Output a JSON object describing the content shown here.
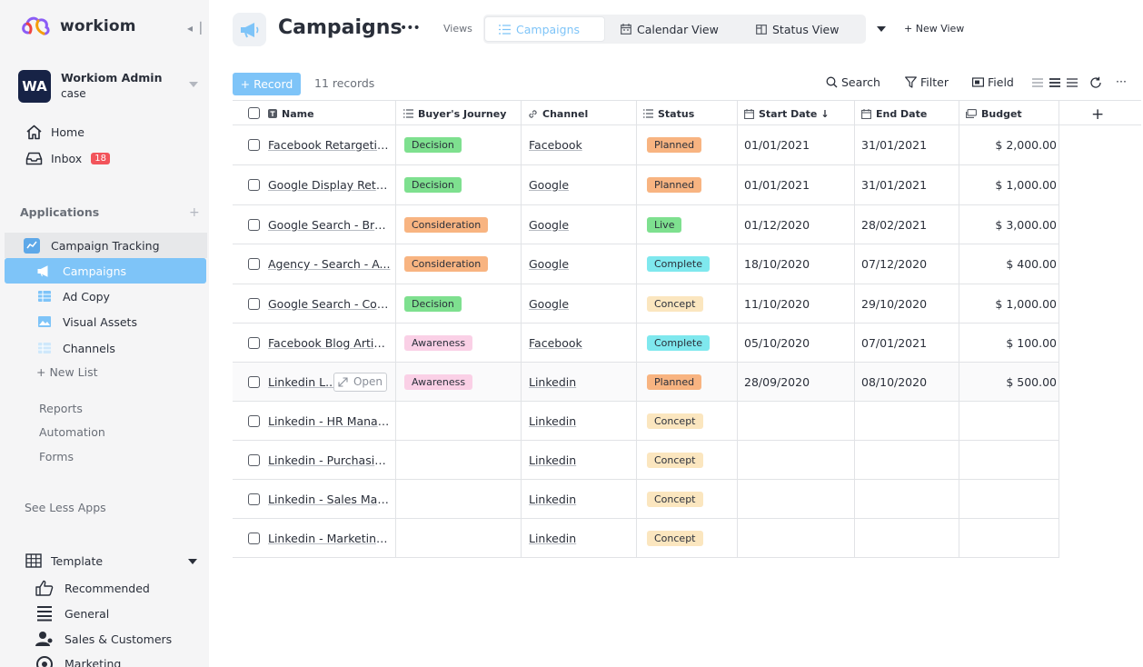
{
  "app": {
    "name": "workiom"
  },
  "user": {
    "initials": "WA",
    "name": "Workiom Admin",
    "subtitle": "case"
  },
  "nav": {
    "home": "Home",
    "inbox": "Inbox",
    "inbox_count": "18"
  },
  "applications": {
    "title": "Applications",
    "app_name": "Campaign Tracking",
    "lists": [
      {
        "label": "Campaigns",
        "active": true
      },
      {
        "label": "Ad Copy"
      },
      {
        "label": "Visual Assets"
      },
      {
        "label": "Channels"
      }
    ],
    "new_list": "+ New List",
    "links": [
      "Reports",
      "Automation",
      "Forms"
    ],
    "see_less": "See Less Apps"
  },
  "template": {
    "title": "Template",
    "categories": [
      "Recommended",
      "General",
      "Sales & Customers",
      "Marketing"
    ]
  },
  "header": {
    "title": "Campaigns",
    "more": "•••",
    "views_label": "Views",
    "tabs": [
      {
        "label": "Campaigns",
        "icon": "list-icon",
        "active": true
      },
      {
        "label": "Calendar View",
        "icon": "calendar-icon"
      },
      {
        "label": "Status View",
        "icon": "board-icon"
      }
    ],
    "new_view": "+  New View"
  },
  "toolbar": {
    "record_button": "+ Record",
    "record_count": "11 records",
    "search": "Search",
    "filter": "Filter",
    "field": "Field",
    "more": "···"
  },
  "table": {
    "columns": [
      "Name",
      "Buyer's Journey",
      "Channel",
      "Status",
      "Start Date",
      "End Date",
      "Budget"
    ],
    "sort_indicator": "↓",
    "open_label": "Open",
    "rows": [
      {
        "name": "Facebook Retargeting",
        "journey": "Decision",
        "channel": "Facebook",
        "status": "Planned",
        "start": "01/01/2021",
        "end": "31/01/2021",
        "budget": "$ 2,000.00"
      },
      {
        "name": "Google Display Retar...",
        "journey": "Decision",
        "channel": "Google",
        "status": "Planned",
        "start": "01/01/2021",
        "end": "31/01/2021",
        "budget": "$ 1,000.00"
      },
      {
        "name": "Google Search - Bra...",
        "journey": "Consideration",
        "channel": "Google",
        "status": "Live",
        "start": "01/12/2020",
        "end": "28/02/2021",
        "budget": "$ 3,000.00"
      },
      {
        "name": "Agency - Search - A...",
        "journey": "Consideration",
        "channel": "Google",
        "status": "Complete",
        "start": "18/10/2020",
        "end": "07/12/2020",
        "budget": "$ 400.00"
      },
      {
        "name": "Google Search - Com...",
        "journey": "Decision",
        "channel": "Google",
        "status": "Concept",
        "start": "11/10/2020",
        "end": "29/10/2020",
        "budget": "$ 1,000.00"
      },
      {
        "name": "Facebook Blog Articl...",
        "journey": "Awareness",
        "channel": "Facebook",
        "status": "Complete",
        "start": "05/10/2020",
        "end": "07/01/2021",
        "budget": "$ 100.00"
      },
      {
        "name": "Linkedin L...",
        "journey": "Awareness",
        "channel": "Linkedin",
        "status": "Planned",
        "start": "28/09/2020",
        "end": "08/10/2020",
        "budget": "$ 500.00"
      },
      {
        "name": "Linkedin - HR Manag...",
        "journey": "",
        "channel": "Linkedin",
        "status": "Concept",
        "start": "",
        "end": "",
        "budget": ""
      },
      {
        "name": "Linkedin - Purchasin...",
        "journey": "",
        "channel": "Linkedin",
        "status": "Concept",
        "start": "",
        "end": "",
        "budget": ""
      },
      {
        "name": "Linkedin - Sales Man...",
        "journey": "",
        "channel": "Linkedin",
        "status": "Concept",
        "start": "",
        "end": "",
        "budget": ""
      },
      {
        "name": "Linkedin - Marketing ...",
        "journey": "",
        "channel": "Linkedin",
        "status": "Concept",
        "start": "",
        "end": "",
        "budget": ""
      }
    ]
  },
  "tag_colors": {
    "Decision": "#7ee08f",
    "Consideration": "#f8b481",
    "Awareness": "#fad0e6",
    "Planned": "#f8b481",
    "Live": "#7ee08f",
    "Complete": "#7fe8ee",
    "Concept": "#fbe6bf"
  },
  "colors": {
    "accent": "#7ec4f8",
    "badge": "#f2545b"
  }
}
